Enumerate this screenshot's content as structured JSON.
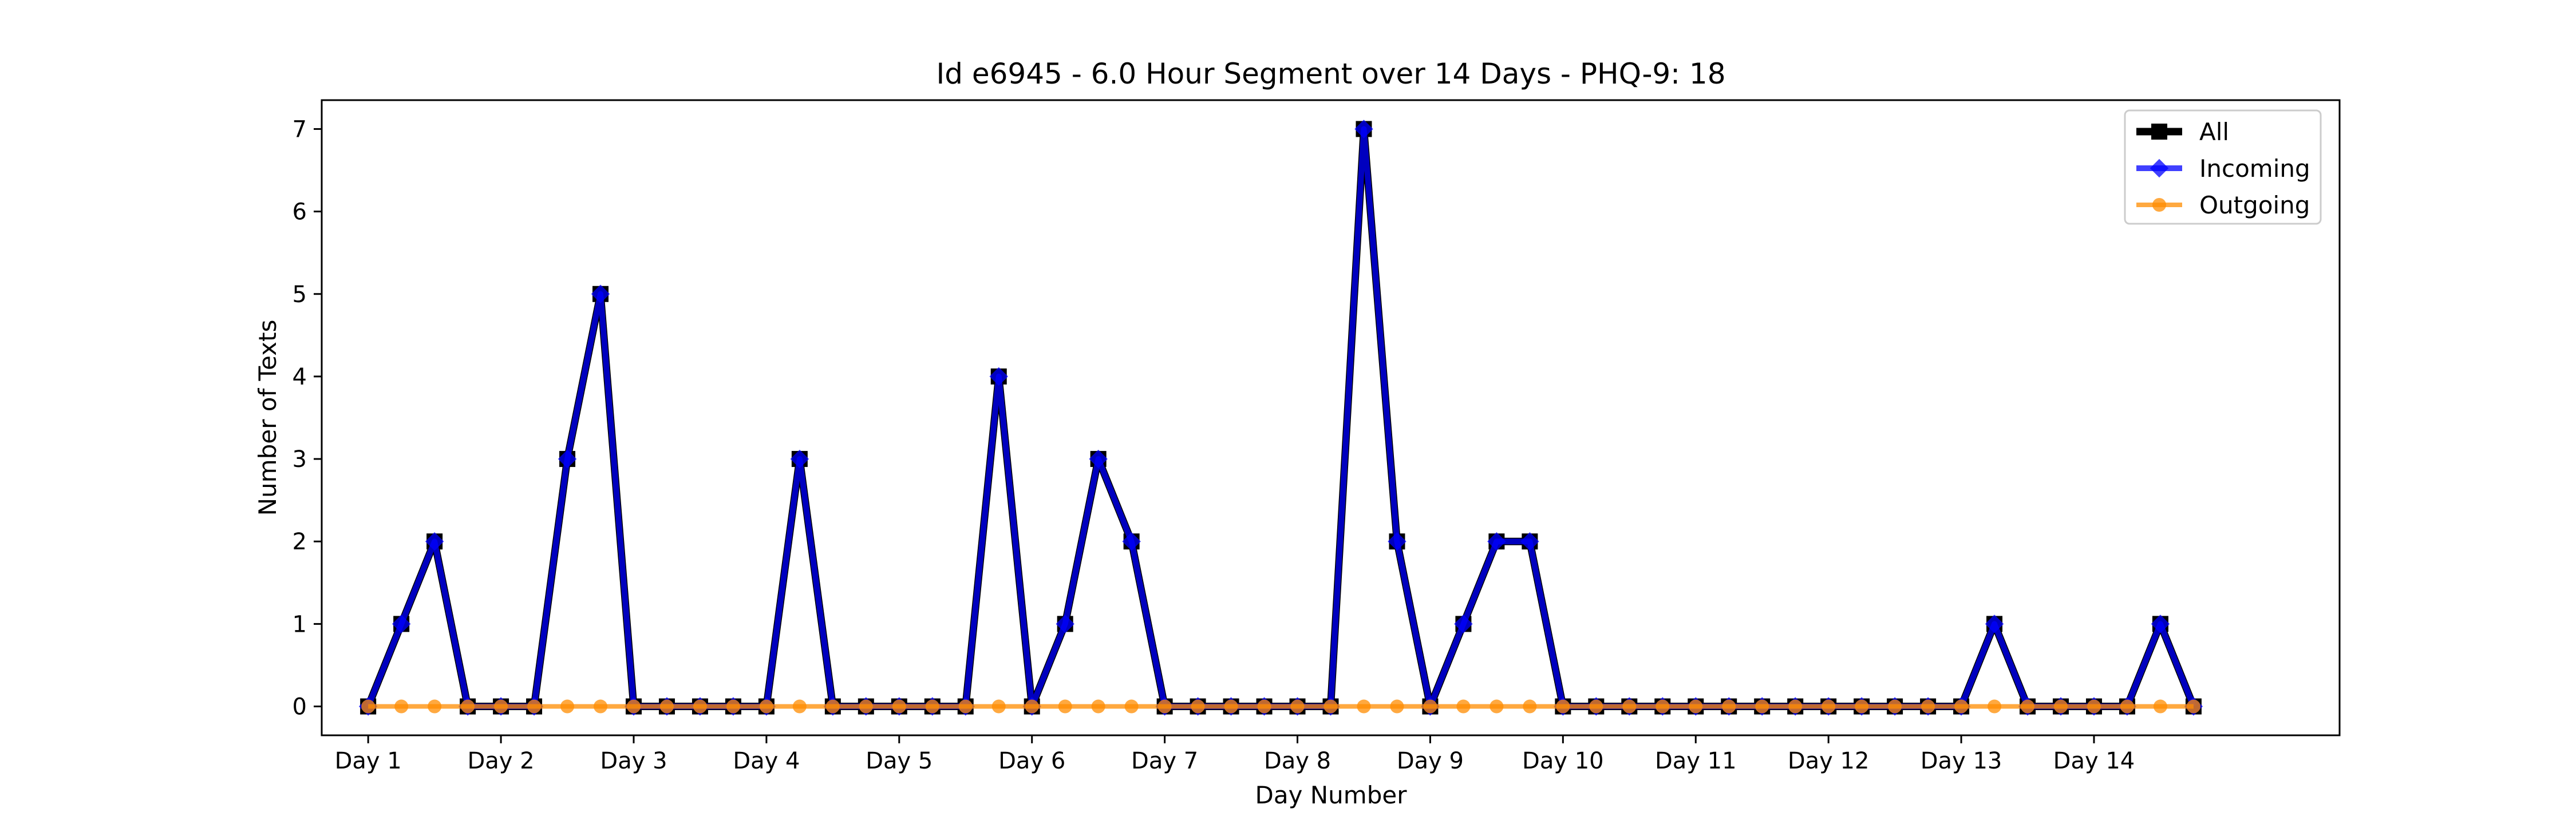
{
  "chart_data": {
    "type": "line",
    "title": "Id e6945 - 6.0 Hour Segment over 14 Days - PHQ-9: 18",
    "xlabel": "Day Number",
    "ylabel": "Number of Texts",
    "ylim": [
      -0.35,
      7.35
    ],
    "xlim": [
      -1.4,
      59.4
    ],
    "yticks": [
      0,
      1,
      2,
      3,
      4,
      5,
      6,
      7
    ],
    "xtick_positions": [
      0,
      4,
      8,
      12,
      16,
      20,
      24,
      28,
      32,
      36,
      40,
      44,
      48,
      52
    ],
    "xtick_labels": [
      "Day 1",
      "Day 2",
      "Day 3",
      "Day 4",
      "Day 5",
      "Day 6",
      "Day 7",
      "Day 8",
      "Day 9",
      "Day 10",
      "Day 11",
      "Day 12",
      "Day 13",
      "Day 14"
    ],
    "legend_position": "top-right",
    "grid": false,
    "series": [
      {
        "name": "All",
        "color": "#000000",
        "marker": "square",
        "values": [
          0,
          1,
          2,
          0,
          0,
          0,
          3,
          5,
          0,
          0,
          0,
          0,
          0,
          3,
          0,
          0,
          0,
          0,
          0,
          4,
          0,
          1,
          3,
          2,
          0,
          0,
          0,
          0,
          0,
          0,
          7,
          2,
          0,
          1,
          2,
          2,
          0,
          0,
          0,
          0,
          0,
          0,
          0,
          0,
          0,
          0,
          0,
          0,
          0,
          1,
          0,
          0,
          0,
          0,
          1,
          0
        ]
      },
      {
        "name": "Incoming",
        "color": "#0000ff",
        "marker": "diamond",
        "values": [
          0,
          1,
          2,
          0,
          0,
          0,
          3,
          5,
          0,
          0,
          0,
          0,
          0,
          3,
          0,
          0,
          0,
          0,
          0,
          4,
          0,
          1,
          3,
          2,
          0,
          0,
          0,
          0,
          0,
          0,
          7,
          2,
          0,
          1,
          2,
          2,
          0,
          0,
          0,
          0,
          0,
          0,
          0,
          0,
          0,
          0,
          0,
          0,
          0,
          1,
          0,
          0,
          0,
          0,
          1,
          0
        ]
      },
      {
        "name": "Outgoing",
        "color": "#ff8c00",
        "marker": "circle",
        "values": [
          0,
          0,
          0,
          0,
          0,
          0,
          0,
          0,
          0,
          0,
          0,
          0,
          0,
          0,
          0,
          0,
          0,
          0,
          0,
          0,
          0,
          0,
          0,
          0,
          0,
          0,
          0,
          0,
          0,
          0,
          0,
          0,
          0,
          0,
          0,
          0,
          0,
          0,
          0,
          0,
          0,
          0,
          0,
          0,
          0,
          0,
          0,
          0,
          0,
          0,
          0,
          0,
          0,
          0,
          0,
          0
        ]
      }
    ]
  }
}
